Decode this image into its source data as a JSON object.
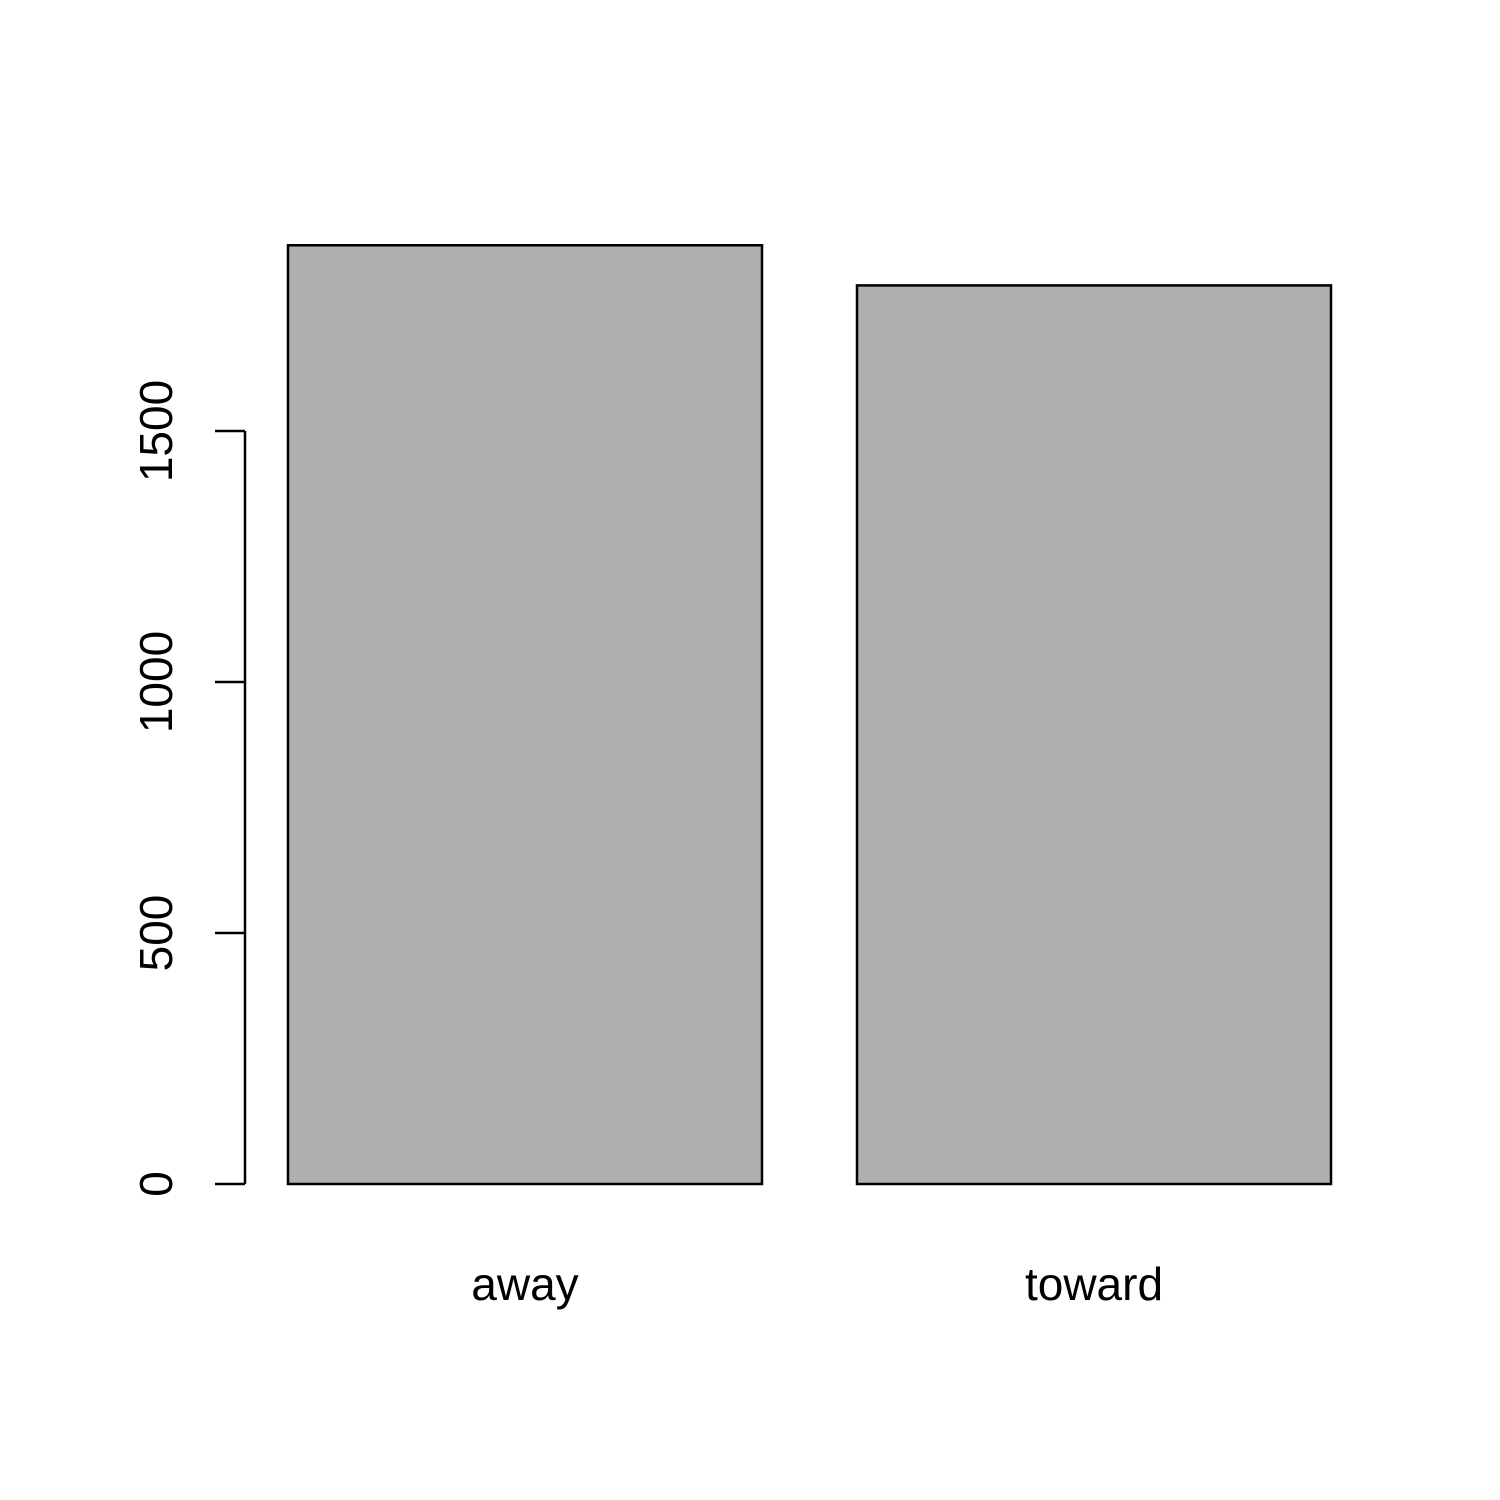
{
  "chart_data": {
    "type": "bar",
    "categories": [
      "away",
      "toward"
    ],
    "values": [
      1870,
      1790
    ],
    "ylim": [
      0,
      1870
    ],
    "yticks": [
      0,
      500,
      1000,
      1500
    ],
    "ytick_labels": [
      "0",
      "500",
      "1000",
      "1500"
    ],
    "title": "",
    "xlabel": "",
    "ylabel": "",
    "bar_color": "#b0b0b0",
    "border_color": "#000000",
    "grid": false
  }
}
